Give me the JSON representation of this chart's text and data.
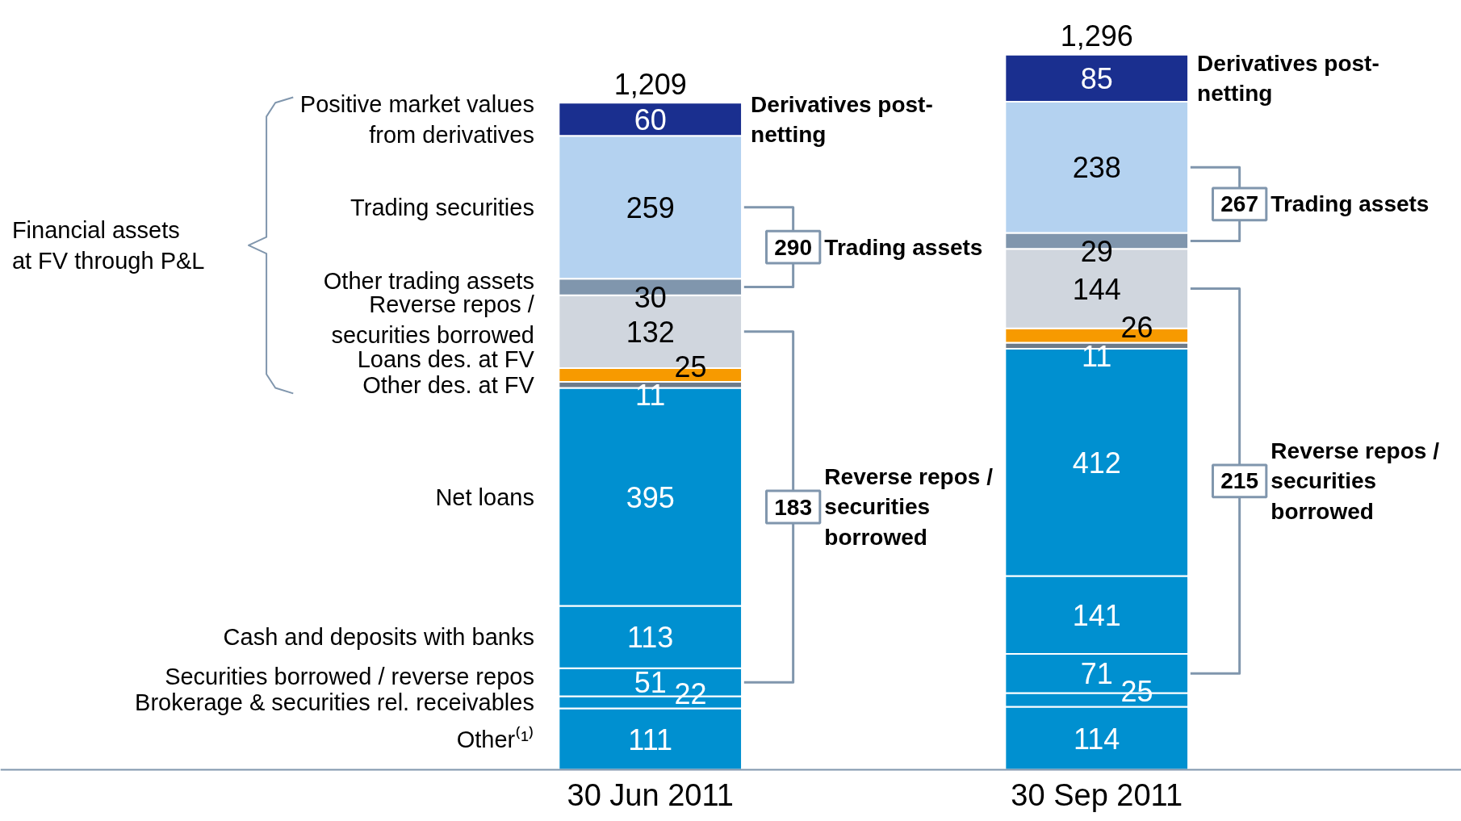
{
  "chart_data": {
    "type": "bar",
    "stacked": true,
    "data_labels": true,
    "categories": [
      "30 Jun 2011",
      "30 Sep 2011"
    ],
    "series": [
      {
        "name": "Other⁽¹⁾",
        "color": "#0090d0",
        "values": [
          111,
          114
        ]
      },
      {
        "name": "Brokerage & securities rel. receivables",
        "color": "#0090d0",
        "values": [
          22,
          25
        ]
      },
      {
        "name": "Securities borrowed / reverse repos",
        "color": "#0090d0",
        "values": [
          51,
          71
        ]
      },
      {
        "name": "Cash and deposits with banks",
        "color": "#0090d0",
        "values": [
          113,
          141
        ]
      },
      {
        "name": "Net loans",
        "color": "#0090d0",
        "values": [
          395,
          412
        ]
      },
      {
        "name": "Other des. at FV",
        "color": "#6d7b8a",
        "values": [
          11,
          11
        ]
      },
      {
        "name": "Loans des. at FV",
        "color": "#f79a00",
        "values": [
          25,
          26
        ]
      },
      {
        "name": "Reverse repos /\nsecurities borrowed",
        "color": "#d0d6de",
        "values": [
          132,
          144
        ]
      },
      {
        "name": "Other trading assets",
        "color": "#8096ad",
        "values": [
          30,
          29
        ]
      },
      {
        "name": "Trading securities",
        "color": "#b4d2f0",
        "values": [
          259,
          238
        ]
      },
      {
        "name": "Positive market values\nfrom derivatives",
        "color": "#1a2f8f",
        "values": [
          60,
          85
        ]
      }
    ],
    "totals": [
      "1,209",
      "1,296"
    ],
    "annotations": [
      "Financial assets\nat FV through P&L",
      "Derivatives post-\nnetting",
      "290",
      "Trading assets",
      "183",
      "Reverse repos /\nsecurities\nborrowed",
      "Derivatives post-\nnetting",
      "267",
      "Trading assets",
      "215",
      "Reverse repos /\nsecurities\nborrowed"
    ]
  }
}
